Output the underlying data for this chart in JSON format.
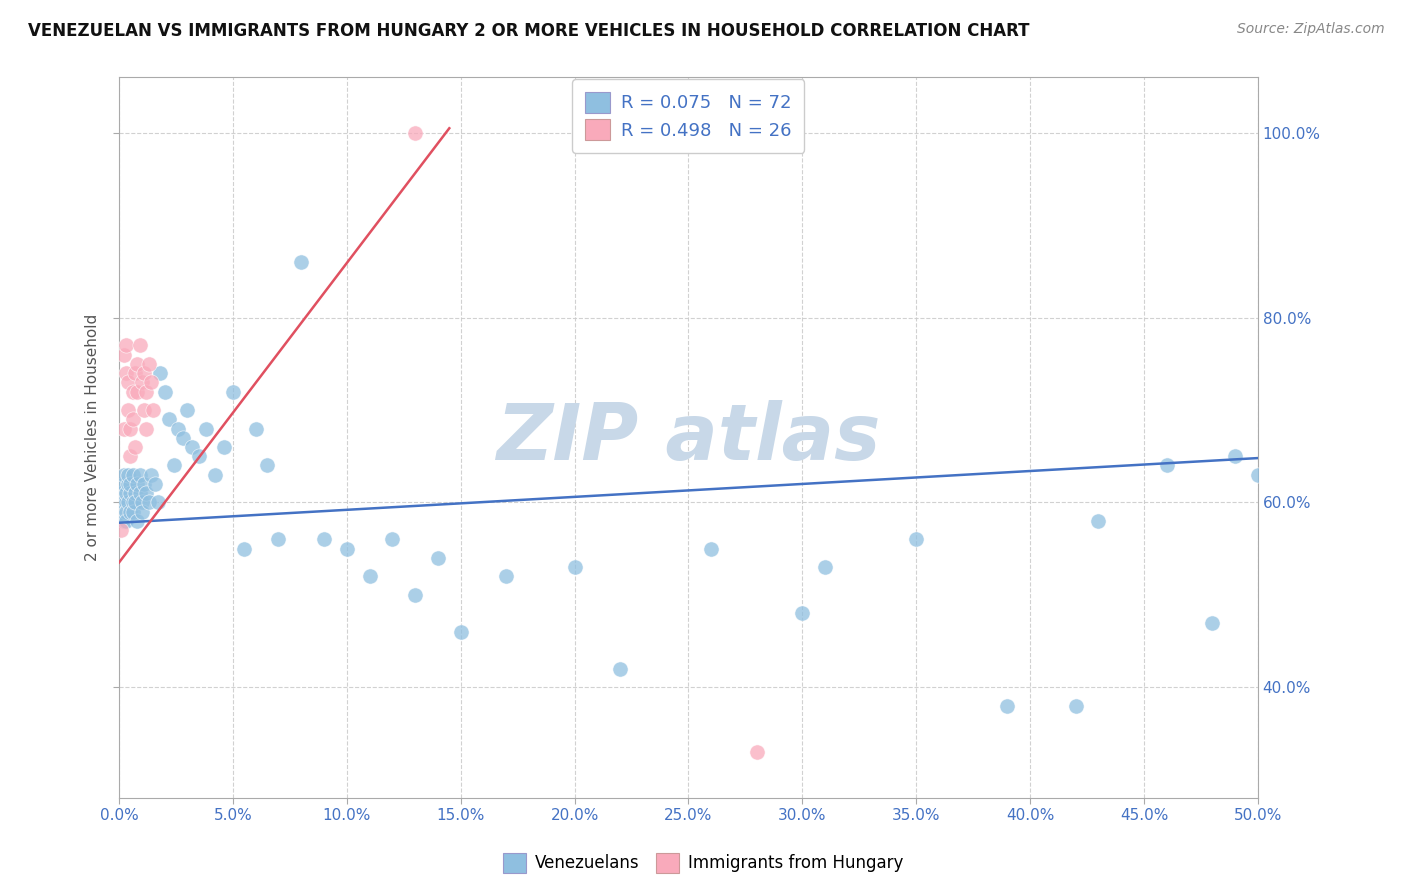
{
  "title": "VENEZUELAN VS IMMIGRANTS FROM HUNGARY 2 OR MORE VEHICLES IN HOUSEHOLD CORRELATION CHART",
  "source": "Source: ZipAtlas.com",
  "ylabel": "2 or more Vehicles in Household",
  "xlim": [
    0.0,
    0.5
  ],
  "ylim": [
    0.28,
    1.06
  ],
  "xticks": [
    0.0,
    0.05,
    0.1,
    0.15,
    0.2,
    0.25,
    0.3,
    0.35,
    0.4,
    0.45,
    0.5
  ],
  "yticks": [
    0.4,
    0.6,
    0.8,
    1.0
  ],
  "blue_color": "#8FBFE0",
  "pink_color": "#F9AABB",
  "blue_line_color": "#4472C4",
  "pink_line_color": "#E05060",
  "watermark_color": "#C8D8E8",
  "R_blue": 0.075,
  "N_blue": 72,
  "R_pink": 0.498,
  "N_pink": 26,
  "blue_trend_x": [
    0.0,
    0.5
  ],
  "blue_trend_y": [
    0.578,
    0.648
  ],
  "pink_trend_x": [
    0.0,
    0.145
  ],
  "pink_trend_y": [
    0.535,
    1.005
  ],
  "blue_x": [
    0.001,
    0.001,
    0.002,
    0.002,
    0.002,
    0.002,
    0.003,
    0.003,
    0.003,
    0.003,
    0.004,
    0.004,
    0.004,
    0.005,
    0.005,
    0.005,
    0.006,
    0.006,
    0.006,
    0.007,
    0.007,
    0.008,
    0.008,
    0.009,
    0.009,
    0.01,
    0.01,
    0.011,
    0.012,
    0.013,
    0.014,
    0.016,
    0.017,
    0.018,
    0.02,
    0.022,
    0.024,
    0.026,
    0.028,
    0.03,
    0.032,
    0.035,
    0.038,
    0.042,
    0.046,
    0.05,
    0.055,
    0.06,
    0.065,
    0.07,
    0.08,
    0.09,
    0.1,
    0.11,
    0.12,
    0.13,
    0.14,
    0.15,
    0.17,
    0.2,
    0.22,
    0.26,
    0.3,
    0.31,
    0.35,
    0.39,
    0.42,
    0.43,
    0.46,
    0.48,
    0.49,
    0.5
  ],
  "blue_y": [
    0.61,
    0.59,
    0.62,
    0.6,
    0.58,
    0.63,
    0.6,
    0.59,
    0.61,
    0.58,
    0.62,
    0.6,
    0.63,
    0.59,
    0.61,
    0.62,
    0.6,
    0.63,
    0.59,
    0.61,
    0.6,
    0.62,
    0.58,
    0.61,
    0.63,
    0.6,
    0.59,
    0.62,
    0.61,
    0.6,
    0.63,
    0.62,
    0.6,
    0.74,
    0.72,
    0.69,
    0.64,
    0.68,
    0.67,
    0.7,
    0.66,
    0.65,
    0.68,
    0.63,
    0.66,
    0.72,
    0.55,
    0.68,
    0.64,
    0.56,
    0.86,
    0.56,
    0.55,
    0.52,
    0.56,
    0.5,
    0.54,
    0.46,
    0.52,
    0.53,
    0.42,
    0.55,
    0.48,
    0.53,
    0.56,
    0.38,
    0.38,
    0.58,
    0.64,
    0.47,
    0.65,
    0.63
  ],
  "pink_x": [
    0.001,
    0.002,
    0.002,
    0.003,
    0.003,
    0.004,
    0.004,
    0.005,
    0.005,
    0.006,
    0.006,
    0.007,
    0.007,
    0.008,
    0.008,
    0.009,
    0.01,
    0.011,
    0.011,
    0.012,
    0.012,
    0.013,
    0.014,
    0.015,
    0.13,
    0.28
  ],
  "pink_y": [
    0.57,
    0.68,
    0.76,
    0.74,
    0.77,
    0.7,
    0.73,
    0.65,
    0.68,
    0.69,
    0.72,
    0.66,
    0.74,
    0.72,
    0.75,
    0.77,
    0.73,
    0.7,
    0.74,
    0.68,
    0.72,
    0.75,
    0.73,
    0.7,
    1.0,
    0.33
  ]
}
